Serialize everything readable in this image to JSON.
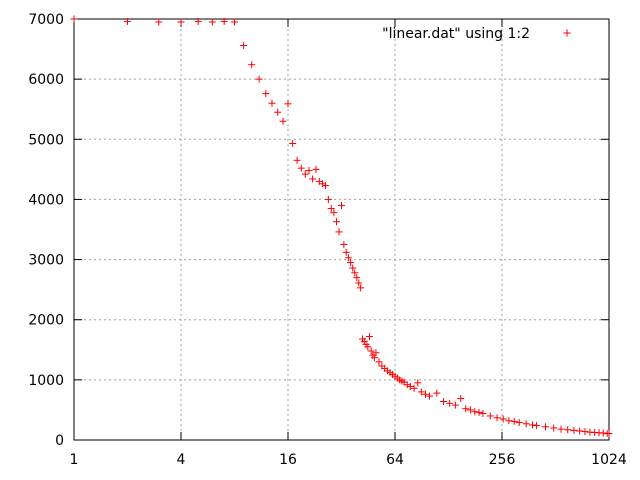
{
  "chart_data": {
    "type": "scatter",
    "title": "",
    "xlabel": "",
    "ylabel": "",
    "x_scale": "log2",
    "xlim": [
      1,
      1024
    ],
    "ylim": [
      0,
      7000
    ],
    "x_ticks": [
      1,
      4,
      16,
      64,
      256,
      1024
    ],
    "x_tick_labels": [
      "1",
      "4",
      "16",
      "64",
      "256",
      "1024"
    ],
    "y_ticks": [
      0,
      1000,
      2000,
      3000,
      4000,
      5000,
      6000,
      7000
    ],
    "y_tick_labels": [
      "0",
      "1000",
      "2000",
      "3000",
      "4000",
      "5000",
      "6000",
      "7000"
    ],
    "grid": true,
    "legend_position": "top-right",
    "marker": "+",
    "series": [
      {
        "name": "\"linear.dat\" using 1:2",
        "color": "#ff0000",
        "points": [
          [
            1,
            7000
          ],
          [
            2,
            6960
          ],
          [
            3,
            6950
          ],
          [
            4,
            6950
          ],
          [
            5,
            6960
          ],
          [
            6,
            6950
          ],
          [
            7,
            6960
          ],
          [
            8,
            6950
          ],
          [
            9,
            6560
          ],
          [
            10,
            6240
          ],
          [
            11,
            6000
          ],
          [
            12,
            5760
          ],
          [
            13,
            5600
          ],
          [
            14,
            5450
          ],
          [
            15,
            5300
          ],
          [
            16,
            5590
          ],
          [
            17,
            4930
          ],
          [
            18,
            4650
          ],
          [
            19,
            4520
          ],
          [
            20,
            4420
          ],
          [
            21,
            4480
          ],
          [
            22,
            4340
          ],
          [
            23,
            4500
          ],
          [
            24,
            4300
          ],
          [
            25,
            4260
          ],
          [
            26,
            4230
          ],
          [
            27,
            4000
          ],
          [
            28,
            3850
          ],
          [
            29,
            3780
          ],
          [
            30,
            3630
          ],
          [
            31,
            3460
          ],
          [
            32,
            3900
          ],
          [
            33,
            3250
          ],
          [
            34,
            3120
          ],
          [
            35,
            3030
          ],
          [
            36,
            2950
          ],
          [
            37,
            2860
          ],
          [
            38,
            2780
          ],
          [
            39,
            2700
          ],
          [
            40,
            2610
          ],
          [
            41,
            2530
          ],
          [
            42,
            1680
          ],
          [
            43,
            1640
          ],
          [
            44,
            1590
          ],
          [
            45,
            1550
          ],
          [
            46,
            1720
          ],
          [
            47,
            1480
          ],
          [
            48,
            1410
          ],
          [
            49,
            1370
          ],
          [
            50,
            1450
          ],
          [
            52,
            1300
          ],
          [
            54,
            1230
          ],
          [
            56,
            1190
          ],
          [
            58,
            1150
          ],
          [
            60,
            1120
          ],
          [
            62,
            1090
          ],
          [
            64,
            1060
          ],
          [
            66,
            1030
          ],
          [
            68,
            1000
          ],
          [
            70,
            980
          ],
          [
            72,
            960
          ],
          [
            75,
            920
          ],
          [
            78,
            890
          ],
          [
            82,
            860
          ],
          [
            86,
            950
          ],
          [
            90,
            800
          ],
          [
            95,
            760
          ],
          [
            100,
            730
          ],
          [
            110,
            780
          ],
          [
            120,
            640
          ],
          [
            130,
            610
          ],
          [
            140,
            580
          ],
          [
            150,
            690
          ],
          [
            160,
            520
          ],
          [
            170,
            500
          ],
          [
            180,
            470
          ],
          [
            190,
            460
          ],
          [
            200,
            440
          ],
          [
            220,
            400
          ],
          [
            240,
            370
          ],
          [
            260,
            350
          ],
          [
            280,
            320
          ],
          [
            300,
            310
          ],
          [
            320,
            290
          ],
          [
            350,
            270
          ],
          [
            380,
            250
          ],
          [
            400,
            240
          ],
          [
            450,
            220
          ],
          [
            500,
            200
          ],
          [
            550,
            180
          ],
          [
            600,
            170
          ],
          [
            650,
            160
          ],
          [
            700,
            150
          ],
          [
            750,
            140
          ],
          [
            800,
            130
          ],
          [
            850,
            125
          ],
          [
            900,
            120
          ],
          [
            950,
            115
          ],
          [
            1000,
            110
          ],
          [
            1024,
            105
          ]
        ]
      }
    ]
  }
}
